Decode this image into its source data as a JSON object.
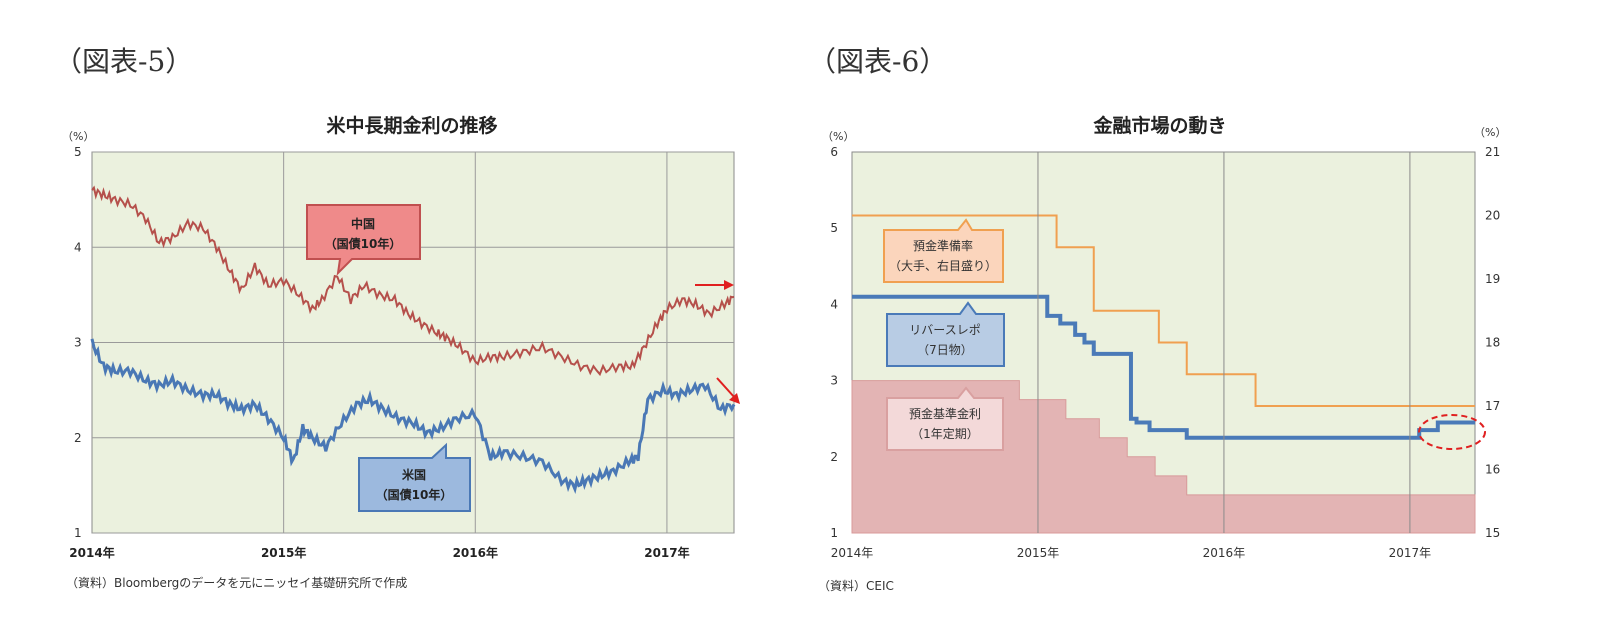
{
  "figures": {
    "fig5_label": "（図表-5）",
    "fig6_label": "（図表-6）"
  },
  "chart_data": [
    {
      "type": "line",
      "title": "米中長期金利の推移",
      "y_unit": "（%）",
      "ylim": [
        1,
        5
      ],
      "yticks": [
        "1",
        "2",
        "3",
        "4",
        "5"
      ],
      "xticks": [
        "2014年",
        "2015年",
        "2016年",
        "2017年"
      ],
      "xlim": [
        2014.0,
        2017.35
      ],
      "grid": true,
      "source": "（資料）Bloombergのデータを元にニッセイ基礎研究所で作成",
      "series": [
        {
          "name_lines": [
            "中国",
            "（国債10年）"
          ],
          "color": "#b5504b",
          "x": [
            2014.0,
            2014.06,
            2014.12,
            2014.2,
            2014.28,
            2014.35,
            2014.42,
            2014.5,
            2014.58,
            2014.65,
            2014.72,
            2014.78,
            2014.85,
            2014.92,
            2015.0,
            2015.08,
            2015.15,
            2015.2,
            2015.28,
            2015.35,
            2015.42,
            2015.5,
            2015.58,
            2015.65,
            2015.72,
            2015.8,
            2015.85,
            2015.92,
            2016.0,
            2016.08,
            2016.15,
            2016.25,
            2016.35,
            2016.45,
            2016.55,
            2016.65,
            2016.75,
            2016.82,
            2016.88,
            2016.95,
            2017.0,
            2017.08,
            2017.15,
            2017.22,
            2017.3,
            2017.35
          ],
          "values": [
            4.6,
            4.55,
            4.5,
            4.45,
            4.3,
            4.05,
            4.1,
            4.25,
            4.2,
            4.0,
            3.75,
            3.55,
            3.8,
            3.6,
            3.65,
            3.5,
            3.35,
            3.45,
            3.7,
            3.45,
            3.6,
            3.5,
            3.45,
            3.3,
            3.2,
            3.1,
            3.05,
            2.95,
            2.8,
            2.85,
            2.85,
            2.9,
            2.95,
            2.85,
            2.75,
            2.7,
            2.75,
            2.75,
            2.95,
            3.2,
            3.35,
            3.45,
            3.4,
            3.3,
            3.4,
            3.48
          ]
        },
        {
          "name_lines": [
            "米国",
            "（国債10年）"
          ],
          "color": "#4a78b5",
          "x": [
            2014.0,
            2014.06,
            2014.12,
            2014.2,
            2014.28,
            2014.35,
            2014.42,
            2014.5,
            2014.58,
            2014.65,
            2014.72,
            2014.78,
            2014.85,
            2014.92,
            2015.0,
            2015.05,
            2015.1,
            2015.15,
            2015.22,
            2015.3,
            2015.38,
            2015.45,
            2015.52,
            2015.6,
            2015.68,
            2015.75,
            2015.82,
            2015.9,
            2016.0,
            2016.08,
            2016.15,
            2016.25,
            2016.35,
            2016.45,
            2016.52,
            2016.58,
            2016.65,
            2016.72,
            2016.8,
            2016.85,
            2016.9,
            2016.98,
            2017.05,
            2017.12,
            2017.2,
            2017.28,
            2017.35
          ],
          "values": [
            3.0,
            2.75,
            2.7,
            2.7,
            2.6,
            2.55,
            2.6,
            2.5,
            2.45,
            2.45,
            2.35,
            2.3,
            2.35,
            2.2,
            2.0,
            1.75,
            2.1,
            2.0,
            1.9,
            2.15,
            2.35,
            2.4,
            2.3,
            2.2,
            2.15,
            2.05,
            2.1,
            2.2,
            2.25,
            1.8,
            1.85,
            1.8,
            1.75,
            1.55,
            1.5,
            1.55,
            1.6,
            1.65,
            1.75,
            1.8,
            2.4,
            2.5,
            2.45,
            2.5,
            2.55,
            2.3,
            2.35
          ]
        }
      ],
      "arrows": [
        {
          "target": "中国",
          "direction": "right"
        },
        {
          "target": "米国",
          "direction": "down"
        }
      ]
    },
    {
      "type": "line",
      "title": "金融市場の動き",
      "y_unit": "（%）",
      "y2_unit": "（%）",
      "ylim": [
        1,
        6
      ],
      "y2lim": [
        15,
        21
      ],
      "yticks": [
        "1",
        "2",
        "3",
        "4",
        "5",
        "6"
      ],
      "y2ticks": [
        "15",
        "16",
        "17",
        "18",
        "19",
        "20",
        "21"
      ],
      "xticks": [
        "2014年",
        "2015年",
        "2016年",
        "2017年"
      ],
      "xlim": [
        2014.0,
        2017.35
      ],
      "grid": true,
      "source": "（資料）CEIC",
      "series": [
        {
          "name_lines": [
            "預金準備率",
            "（大手、右目盛り）"
          ],
          "axis": "right",
          "style": "step-line",
          "color": "#f0a050",
          "x": [
            2014.0,
            2015.1,
            2015.3,
            2015.65,
            2015.8,
            2016.17,
            2017.35
          ],
          "values": [
            20.0,
            19.5,
            18.5,
            18.0,
            17.5,
            17.0,
            17.0
          ]
        },
        {
          "name_lines": [
            "リバースレポ",
            "（7日物）"
          ],
          "axis": "left",
          "style": "step-line",
          "color": "#4a7ab8",
          "x": [
            2014.0,
            2015.05,
            2015.12,
            2015.2,
            2015.25,
            2015.3,
            2015.5,
            2015.53,
            2015.6,
            2015.8,
            2017.05,
            2017.15,
            2017.35
          ],
          "values": [
            4.1,
            3.85,
            3.75,
            3.6,
            3.5,
            3.35,
            2.5,
            2.45,
            2.35,
            2.25,
            2.35,
            2.45,
            2.45
          ]
        },
        {
          "name_lines": [
            "預金基準金利",
            "（1年定期）"
          ],
          "axis": "left",
          "style": "step-area",
          "color": "#e3b4b4",
          "x": [
            2014.0,
            2014.9,
            2015.15,
            2015.33,
            2015.48,
            2015.63,
            2015.8,
            2017.35
          ],
          "values": [
            3.0,
            2.75,
            2.5,
            2.25,
            2.0,
            1.75,
            1.5,
            1.5
          ]
        }
      ],
      "highlight": {
        "shape": "ellipse",
        "note": "2017"
      }
    }
  ]
}
